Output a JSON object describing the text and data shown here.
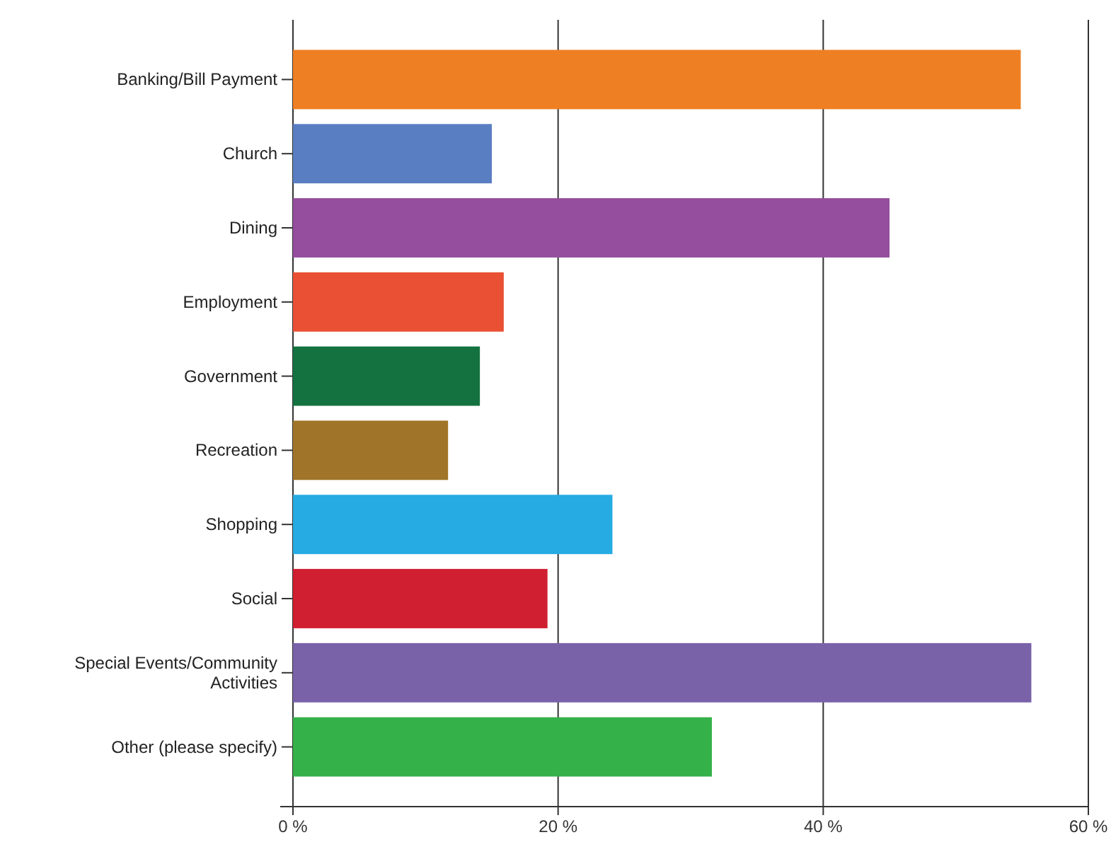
{
  "chart_data": {
    "type": "bar",
    "orientation": "horizontal",
    "categories": [
      "Banking/Bill Payment",
      "Church",
      "Dining",
      "Employment",
      "Government",
      "Recreation",
      "Shopping",
      "Social",
      "Special Events/Community Activities",
      "Other (please specify)"
    ],
    "values": [
      54.9,
      15.0,
      45.0,
      15.9,
      14.1,
      11.7,
      24.1,
      19.2,
      55.7,
      31.6
    ],
    "colors": [
      "#ee7f22",
      "#5a7ec2",
      "#944e9d",
      "#ea5034",
      "#137240",
      "#a07529",
      "#26abe3",
      "#d01f31",
      "#7a62a9",
      "#35b14a"
    ],
    "xlim": [
      0,
      60
    ],
    "xticks": [
      {
        "value": 0,
        "label": "0 %"
      },
      {
        "value": 20,
        "label": "20 %"
      },
      {
        "value": 40,
        "label": "40 %"
      },
      {
        "value": 60,
        "label": "60 %"
      }
    ],
    "grid": "x"
  }
}
